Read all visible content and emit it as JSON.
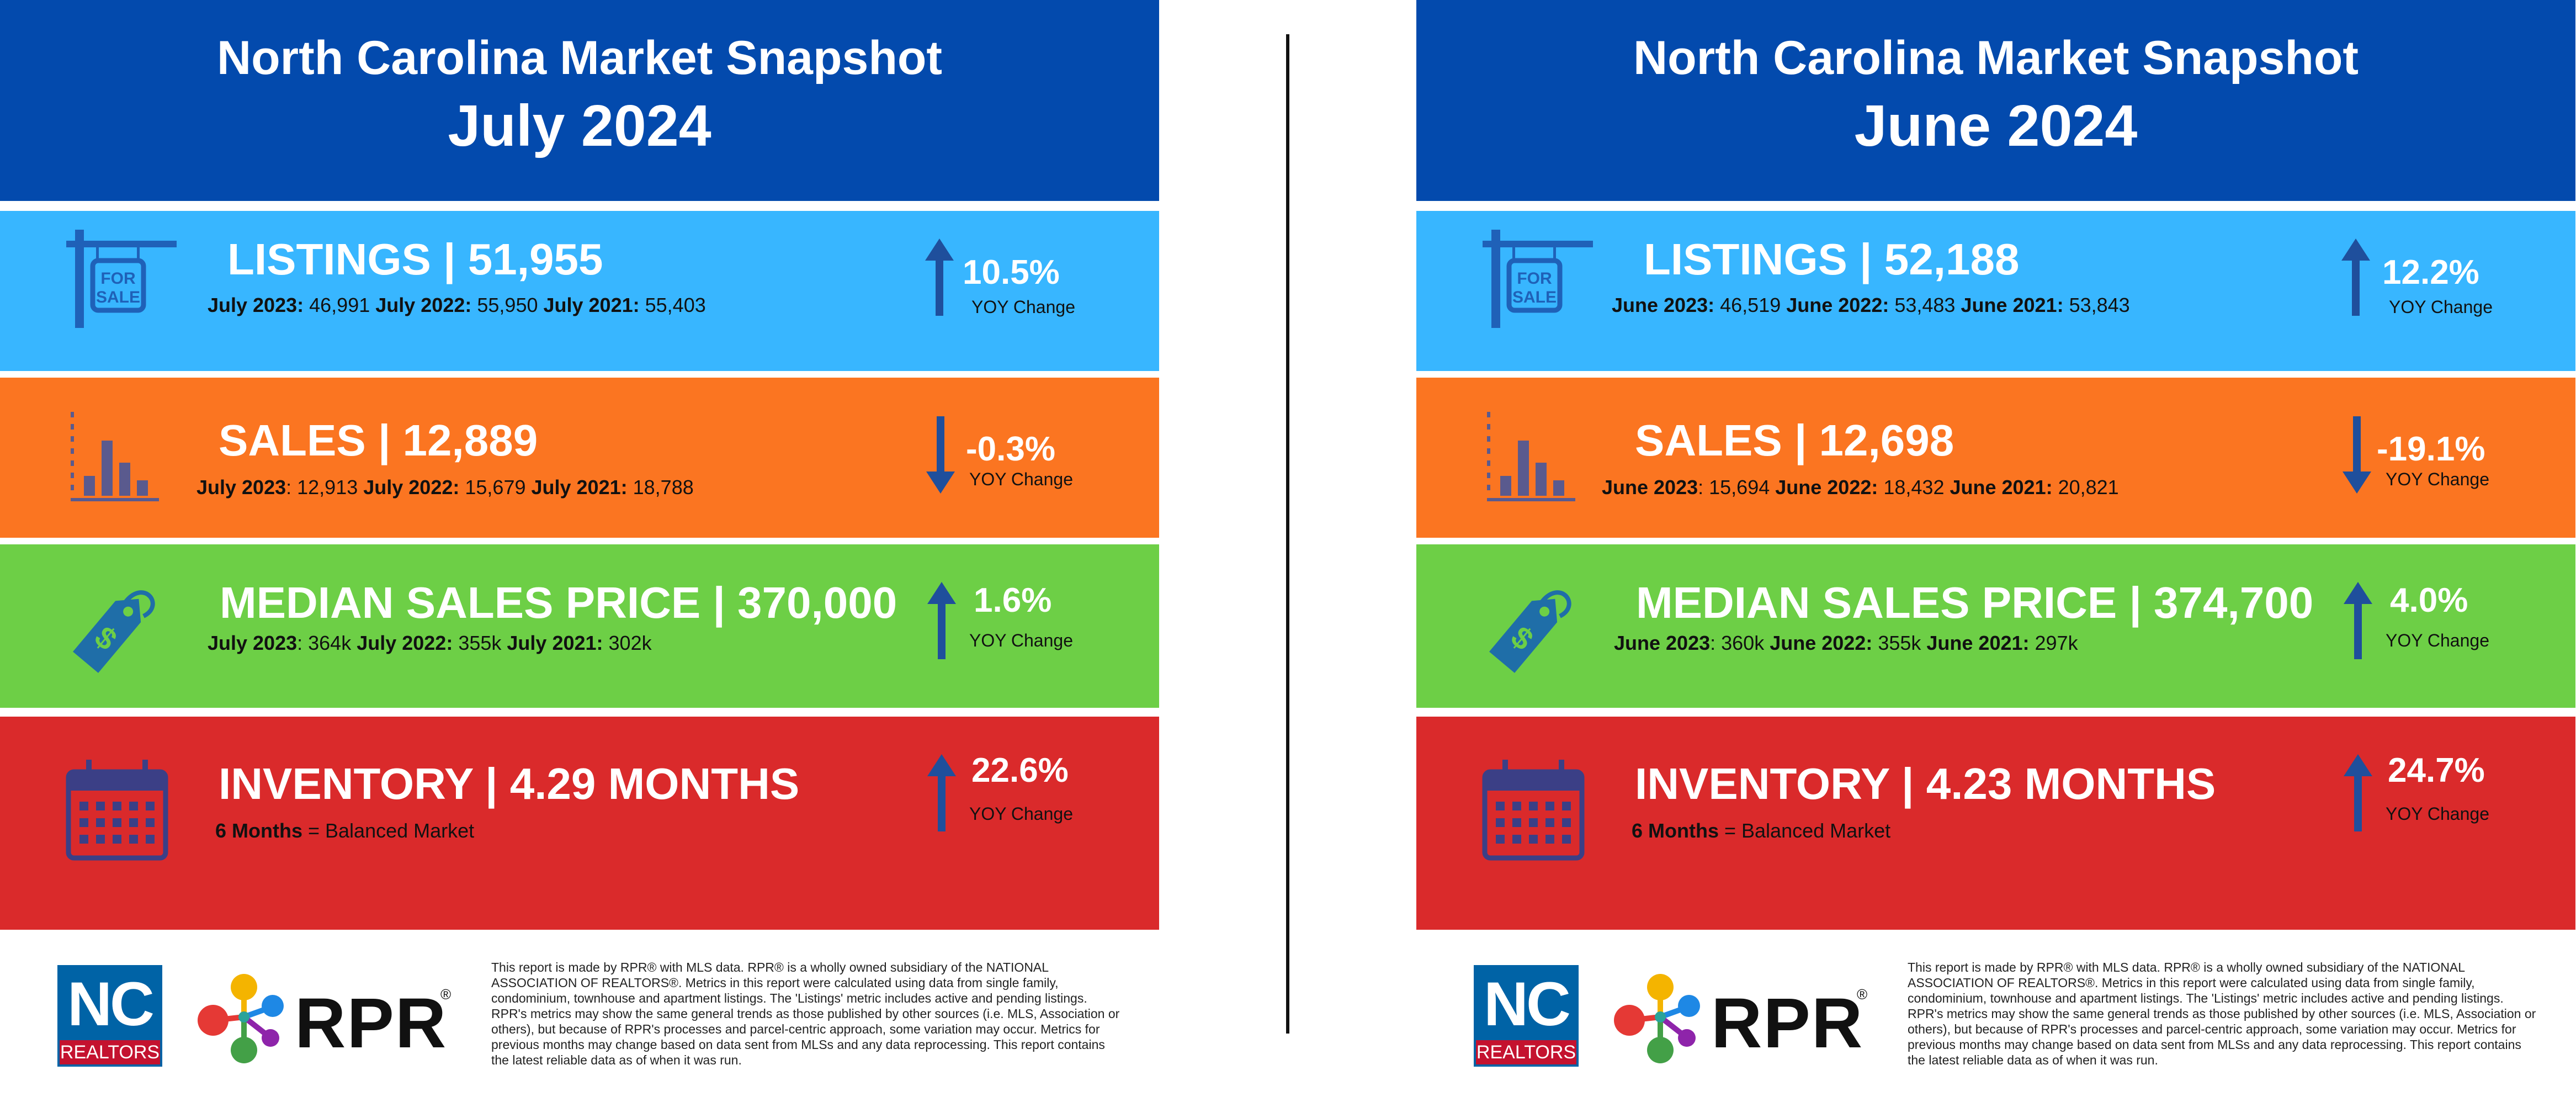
{
  "left": {
    "header": {
      "title": "North Carolina Market Snapshot",
      "subtitle": "July 2024"
    },
    "listings": {
      "label": "LISTINGS | 51,955",
      "d1_lbl": "July 2023:",
      "d1_val": " 46,991 ",
      "d2_lbl": "July 2022:",
      "d2_val": " 55,950 ",
      "d3_lbl": "July 2021:",
      "d3_val": " 55,403",
      "pct": "10.5%",
      "yoy": "YOY Change",
      "dir": "up"
    },
    "sales": {
      "label": "SALES | 12,889",
      "d1_lbl": "July 2023",
      "d1_val": ": 12,913 ",
      "d2_lbl": "July 2022:",
      "d2_val": " 15,679  ",
      "d3_lbl": "July 2021:",
      "d3_val": " 18,788",
      "pct": "-0.3%",
      "yoy": "YOY Change",
      "dir": "down"
    },
    "price": {
      "label": "MEDIAN SALES PRICE | 370,000",
      "d1_lbl": "July 2023",
      "d1_val": ": 364k ",
      "d2_lbl": "July 2022:",
      "d2_val": " 355k  ",
      "d3_lbl": "July 2021:",
      "d3_val": " 302k",
      "pct": "1.6%",
      "yoy": "YOY Change",
      "dir": "up"
    },
    "inventory": {
      "label": "INVENTORY | 4.29 MONTHS",
      "note_bold": "6 Months",
      "note_rest": " = Balanced Market",
      "pct": "22.6%",
      "yoy": "YOY Change",
      "dir": "up"
    }
  },
  "right": {
    "header": {
      "title": "North Carolina Market Snapshot",
      "subtitle": "June 2024"
    },
    "listings": {
      "label": "LISTINGS | 52,188",
      "d1_lbl": "June 2023:",
      "d1_val": " 46,519 ",
      "d2_lbl": "June 2022:",
      "d2_val": " 53,483  ",
      "d3_lbl": "June 2021:",
      "d3_val": " 53,843",
      "pct": "12.2%",
      "yoy": "YOY Change",
      "dir": "up"
    },
    "sales": {
      "label": "SALES | 12,698",
      "d1_lbl": "June 2023",
      "d1_val": ": 15,694 ",
      "d2_lbl": "June 2022:",
      "d2_val": " 18,432  ",
      "d3_lbl": "June 2021:",
      "d3_val": " 20,821",
      "pct": "-19.1%",
      "yoy": "YOY Change",
      "dir": "down"
    },
    "price": {
      "label": "MEDIAN SALES PRICE | 374,700",
      "d1_lbl": "June 2023",
      "d1_val": ": 360k ",
      "d2_lbl": "June 2022:",
      "d2_val": " 355k  ",
      "d3_lbl": "June 2021:",
      "d3_val": " 297k",
      "pct": "4.0%",
      "yoy": "YOY Change",
      "dir": "up"
    },
    "inventory": {
      "label": "INVENTORY | 4.23 MONTHS",
      "note_bold": "6 Months",
      "note_rest": " = Balanced Market",
      "pct": "24.7%",
      "yoy": "YOY Change",
      "dir": "up"
    }
  },
  "footer": {
    "nc_logo": "NC",
    "nc_logo_sub": "REALTORS",
    "rpr_logo": "RPR",
    "rpr_reg": "®",
    "disclaimer": "This report is made by RPR® with MLS data. RPR® is a wholly owned subsidiary of the NATIONAL ASSOCIATION OF REALTORS®. Metrics in this report were calculated using data from single family, condominium, townhouse and apartment listings. The 'Listings' metric includes active and pending listings. RPR's metrics may show the same general trends as those published by other sources (i.e. MLS, Association or others), but because of RPR's processes and parcel-centric approach, some variation may occur. Metrics for previous months may change based on data sent from MLSs and any data reprocessing. This report contains the latest reliable data as of when it was run."
  },
  "colors": {
    "header": "#034aad",
    "listings": "#38b6ff",
    "sales": "#fb7521",
    "price": "#6dcf46",
    "inventory": "#da2a2b",
    "icon_listings": "#1f61b8",
    "icon_sales": "#5a5a8e",
    "icon_price": "#1f6ea8",
    "icon_inventory": "#3b3f86",
    "arrow_blue": "#1f4f9c"
  },
  "icons": {
    "listings": "for-sale-sign-icon",
    "sales": "bar-chart-icon",
    "price": "price-tag-icon",
    "inventory": "calendar-icon",
    "trend": "trend-arrow-icon"
  }
}
